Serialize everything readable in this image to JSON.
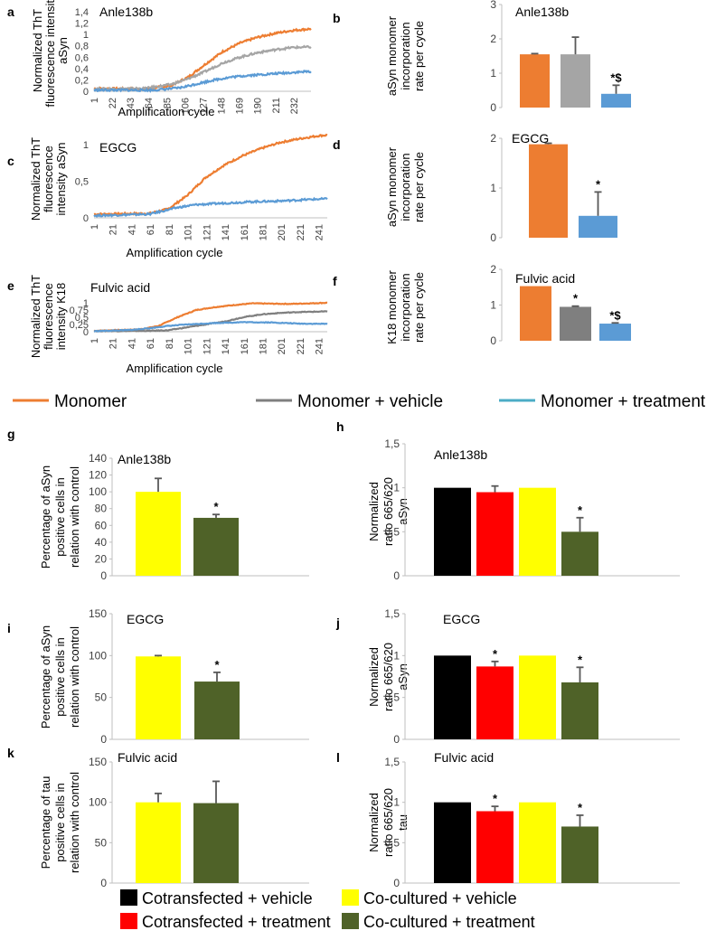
{
  "colors": {
    "monomer": "#ED7D31",
    "vehicle": "#A5A5A5",
    "vehicle_dark": "#7F7F7F",
    "treatment": "#5B9BD5",
    "legend_treatment": "#4BACC6",
    "black": "#000000",
    "red": "#FF0000",
    "yellow": "#FFFF00",
    "olive": "#4F6228"
  },
  "legend_top": {
    "items": [
      {
        "label": "Monomer",
        "color": "#ED7D31"
      },
      {
        "label": "Monomer + vehicle",
        "color": "#7F7F7F"
      },
      {
        "label": "Monomer + treatment",
        "color": "#4BACC6"
      }
    ]
  },
  "legend_bottom": {
    "items": [
      {
        "label": "Cotransfected + vehicle",
        "color": "#000000"
      },
      {
        "label": "Co-cultured + vehicle",
        "color": "#FFFF00"
      },
      {
        "label": "Cotransfected + treatment",
        "color": "#FF0000"
      },
      {
        "label": "Co-cultured + treatment",
        "color": "#4F6228"
      }
    ]
  },
  "chart_data": [
    {
      "id": "a",
      "panel_letter": "a",
      "type": "line",
      "title": "Anle138b",
      "ylabel": [
        "Normalized ThT",
        "fluorescence intensity",
        "aSyn"
      ],
      "xlabel": "Amplification cycle",
      "ylim": [
        0,
        1.4
      ],
      "yticks": [
        "0",
        "0,2",
        "0,4",
        "0,6",
        "0,8",
        "1",
        "1,2",
        "1,4"
      ],
      "xticks": [
        "1",
        "22",
        "43",
        "64",
        "85",
        "106",
        "127",
        "148",
        "169",
        "190",
        "211",
        "232"
      ],
      "x_max": 252,
      "series": [
        {
          "name": "Monomer",
          "color": "#ED7D31",
          "points": [
            [
              1,
              0.05
            ],
            [
              60,
              0.04
            ],
            [
              90,
              0.1
            ],
            [
              110,
              0.25
            ],
            [
              130,
              0.48
            ],
            [
              150,
              0.7
            ],
            [
              170,
              0.85
            ],
            [
              190,
              0.95
            ],
            [
              210,
              1.02
            ],
            [
              230,
              1.07
            ],
            [
              252,
              1.1
            ]
          ]
        },
        {
          "name": "Monomer + vehicle",
          "color": "#A5A5A5",
          "points": [
            [
              1,
              0.04
            ],
            [
              60,
              0.05
            ],
            [
              90,
              0.12
            ],
            [
              110,
              0.22
            ],
            [
              130,
              0.35
            ],
            [
              150,
              0.5
            ],
            [
              170,
              0.6
            ],
            [
              190,
              0.68
            ],
            [
              210,
              0.73
            ],
            [
              230,
              0.77
            ],
            [
              252,
              0.78
            ]
          ]
        },
        {
          "name": "Monomer + treatment",
          "color": "#5B9BD5",
          "points": [
            [
              1,
              0.02
            ],
            [
              70,
              0.02
            ],
            [
              100,
              0.06
            ],
            [
              120,
              0.13
            ],
            [
              140,
              0.2
            ],
            [
              160,
              0.25
            ],
            [
              180,
              0.28
            ],
            [
              200,
              0.3
            ],
            [
              220,
              0.32
            ],
            [
              240,
              0.34
            ],
            [
              252,
              0.35
            ]
          ]
        }
      ]
    },
    {
      "id": "b",
      "panel_letter": "b",
      "type": "bar",
      "title": "Anle138b",
      "ylabel": [
        "aSyn monomer",
        "incorporation",
        "rate per cycle"
      ],
      "ylim": [
        0,
        3
      ],
      "yticks": [
        "0",
        "1",
        "2",
        "3"
      ],
      "bars": [
        {
          "value": 1.55,
          "err": 0.02,
          "color": "#ED7D31",
          "sig": ""
        },
        {
          "value": 1.55,
          "err": 0.5,
          "color": "#A5A5A5",
          "sig": ""
        },
        {
          "value": 0.4,
          "err": 0.25,
          "color": "#5B9BD5",
          "sig": "*$"
        }
      ]
    },
    {
      "id": "c",
      "panel_letter": "c",
      "type": "line",
      "title": "EGCG",
      "ylabel": [
        "Normalized ThT",
        "fluorescence",
        "intensity aSyn"
      ],
      "xlabel": "Amplification cycle",
      "ylim": [
        0,
        1
      ],
      "yticks": [
        "0",
        "0,5",
        "1"
      ],
      "xticks": [
        "1",
        "21",
        "41",
        "61",
        "81",
        "101",
        "121",
        "141",
        "161",
        "181",
        "201",
        "221",
        "241"
      ],
      "x_max": 250,
      "series": [
        {
          "name": "Monomer",
          "color": "#ED7D31",
          "points": [
            [
              1,
              0.05
            ],
            [
              60,
              0.06
            ],
            [
              80,
              0.12
            ],
            [
              100,
              0.3
            ],
            [
              120,
              0.55
            ],
            [
              140,
              0.72
            ],
            [
              160,
              0.85
            ],
            [
              180,
              0.95
            ],
            [
              200,
              1.03
            ],
            [
              220,
              1.08
            ],
            [
              240,
              1.12
            ],
            [
              250,
              1.13
            ]
          ]
        },
        {
          "name": "Monomer + treatment",
          "color": "#5B9BD5",
          "points": [
            [
              1,
              0.03
            ],
            [
              60,
              0.05
            ],
            [
              90,
              0.14
            ],
            [
              110,
              0.18
            ],
            [
              140,
              0.2
            ],
            [
              170,
              0.22
            ],
            [
              200,
              0.23
            ],
            [
              230,
              0.25
            ],
            [
              250,
              0.26
            ]
          ]
        }
      ]
    },
    {
      "id": "d",
      "panel_letter": "d",
      "type": "bar",
      "title": "EGCG",
      "ylabel": [
        "aSyn monomer",
        "incorporation",
        "rate per cycle"
      ],
      "ylim": [
        0,
        2
      ],
      "yticks": [
        "0",
        "1",
        "2"
      ],
      "bars": [
        {
          "value": 1.88,
          "err": 0.02,
          "color": "#ED7D31",
          "sig": ""
        },
        {
          "value": 0.44,
          "err": 0.48,
          "color": "#5B9BD5",
          "sig": "*"
        }
      ]
    },
    {
      "id": "e",
      "panel_letter": "e",
      "type": "line",
      "title": "Fulvic acid",
      "ylabel": [
        "Normalized ThT",
        "fluorescence",
        "intensity K18"
      ],
      "xlabel": "Amplification cycle",
      "ylim": [
        0,
        1
      ],
      "yticks": [
        "0",
        "0,25",
        "0,5",
        "0,75",
        "1"
      ],
      "xticks": [
        "1",
        "21",
        "41",
        "61",
        "81",
        "101",
        "121",
        "141",
        "161",
        "181",
        "201",
        "221",
        "241"
      ],
      "x_max": 250,
      "series": [
        {
          "name": "Monomer",
          "color": "#ED7D31",
          "points": [
            [
              1,
              0.03
            ],
            [
              50,
              0.08
            ],
            [
              70,
              0.2
            ],
            [
              90,
              0.5
            ],
            [
              110,
              0.75
            ],
            [
              130,
              0.85
            ],
            [
              150,
              0.92
            ],
            [
              170,
              0.98
            ],
            [
              190,
              0.97
            ],
            [
              210,
              0.96
            ],
            [
              230,
              0.98
            ],
            [
              250,
              1.0
            ]
          ]
        },
        {
          "name": "Monomer + vehicle",
          "color": "#7F7F7F",
          "points": [
            [
              1,
              0.02
            ],
            [
              60,
              0.03
            ],
            [
              80,
              0.05
            ],
            [
              100,
              0.15
            ],
            [
              120,
              0.25
            ],
            [
              140,
              0.35
            ],
            [
              160,
              0.5
            ],
            [
              180,
              0.6
            ],
            [
              200,
              0.65
            ],
            [
              220,
              0.68
            ],
            [
              250,
              0.7
            ]
          ]
        },
        {
          "name": "Monomer + treatment",
          "color": "#5B9BD5",
          "points": [
            [
              1,
              0.02
            ],
            [
              40,
              0.06
            ],
            [
              60,
              0.12
            ],
            [
              80,
              0.2
            ],
            [
              100,
              0.25
            ],
            [
              130,
              0.3
            ],
            [
              160,
              0.33
            ],
            [
              190,
              0.32
            ],
            [
              220,
              0.28
            ],
            [
              250,
              0.27
            ]
          ]
        }
      ]
    },
    {
      "id": "f",
      "panel_letter": "f",
      "type": "bar",
      "title": "Fulvic acid",
      "ylabel": [
        "K18 monomer",
        "incorporation",
        "rate per cycle"
      ],
      "ylim": [
        0,
        2
      ],
      "yticks": [
        "0",
        "1",
        "2"
      ],
      "bars": [
        {
          "value": 1.53,
          "err": 0.0,
          "color": "#ED7D31",
          "sig": ""
        },
        {
          "value": 0.95,
          "err": 0.02,
          "color": "#7F7F7F",
          "sig": "*"
        },
        {
          "value": 0.48,
          "err": 0.02,
          "color": "#5B9BD5",
          "sig": "*$"
        }
      ]
    },
    {
      "id": "g",
      "panel_letter": "g",
      "type": "bar",
      "title": "Anle138b",
      "ylabel": [
        "Percentage of aSyn",
        "positive cells in",
        "relation with control"
      ],
      "ylim": [
        0,
        140
      ],
      "yticks": [
        "0",
        "20",
        "40",
        "60",
        "80",
        "100",
        "120",
        "140"
      ],
      "bars": [
        {
          "value": 100,
          "err": 16,
          "color": "#FFFF00",
          "sig": ""
        },
        {
          "value": 69,
          "err": 4,
          "color": "#4F6228",
          "sig": "*"
        }
      ]
    },
    {
      "id": "h",
      "panel_letter": "h",
      "type": "bar",
      "title": "Anle138b",
      "ylabel": [
        "Normalized",
        "ratio 665/620",
        "aSyn"
      ],
      "ylim": [
        0,
        1.5
      ],
      "yticks": [
        "0",
        "0,5",
        "1",
        "1,5"
      ],
      "bars": [
        {
          "value": 1.0,
          "err": 0.0,
          "color": "#000000",
          "sig": ""
        },
        {
          "value": 0.95,
          "err": 0.07,
          "color": "#FF0000",
          "sig": ""
        },
        {
          "value": 1.0,
          "err": 0.0,
          "color": "#FFFF00",
          "sig": ""
        },
        {
          "value": 0.5,
          "err": 0.16,
          "color": "#4F6228",
          "sig": "*"
        }
      ]
    },
    {
      "id": "i",
      "panel_letter": "i",
      "type": "bar",
      "title": "EGCG",
      "ylabel": [
        "Percentage of aSyn",
        "positive cells in",
        "relation with control"
      ],
      "ylim": [
        0,
        150
      ],
      "yticks": [
        "0",
        "50",
        "100",
        "150"
      ],
      "bars": [
        {
          "value": 99,
          "err": 1,
          "color": "#FFFF00",
          "sig": ""
        },
        {
          "value": 69,
          "err": 11,
          "color": "#4F6228",
          "sig": "*"
        }
      ]
    },
    {
      "id": "j",
      "panel_letter": "j",
      "type": "bar",
      "title": "EGCG",
      "ylabel": [
        "Normalized",
        "ratio 665/620",
        "aSyn"
      ],
      "ylim": [
        0,
        1.5
      ],
      "yticks": [
        "0",
        "0,5",
        "1",
        "1,5"
      ],
      "bars": [
        {
          "value": 1.0,
          "err": 0.0,
          "color": "#000000",
          "sig": ""
        },
        {
          "value": 0.87,
          "err": 0.06,
          "color": "#FF0000",
          "sig": "*"
        },
        {
          "value": 1.0,
          "err": 0.0,
          "color": "#FFFF00",
          "sig": ""
        },
        {
          "value": 0.68,
          "err": 0.18,
          "color": "#4F6228",
          "sig": "*"
        }
      ]
    },
    {
      "id": "k",
      "panel_letter": "k",
      "type": "bar",
      "title": "Fulvic acid",
      "ylabel": [
        "Percentage of tau",
        "positive cells in",
        "relation with control"
      ],
      "ylim": [
        0,
        150
      ],
      "yticks": [
        "0",
        "50",
        "100",
        "150"
      ],
      "bars": [
        {
          "value": 100,
          "err": 11,
          "color": "#FFFF00",
          "sig": ""
        },
        {
          "value": 99,
          "err": 27,
          "color": "#4F6228",
          "sig": ""
        }
      ]
    },
    {
      "id": "l",
      "panel_letter": "l",
      "type": "bar",
      "title": "Fulvic acid",
      "ylabel": [
        "Normalized",
        "ratio 665/620",
        "tau"
      ],
      "ylim": [
        0,
        1.5
      ],
      "yticks": [
        "0",
        "0,5",
        "1",
        "1,5"
      ],
      "bars": [
        {
          "value": 1.0,
          "err": 0.0,
          "color": "#000000",
          "sig": ""
        },
        {
          "value": 0.89,
          "err": 0.06,
          "color": "#FF0000",
          "sig": "*"
        },
        {
          "value": 1.0,
          "err": 0.0,
          "color": "#FFFF00",
          "sig": ""
        },
        {
          "value": 0.7,
          "err": 0.14,
          "color": "#4F6228",
          "sig": "*"
        }
      ]
    }
  ]
}
